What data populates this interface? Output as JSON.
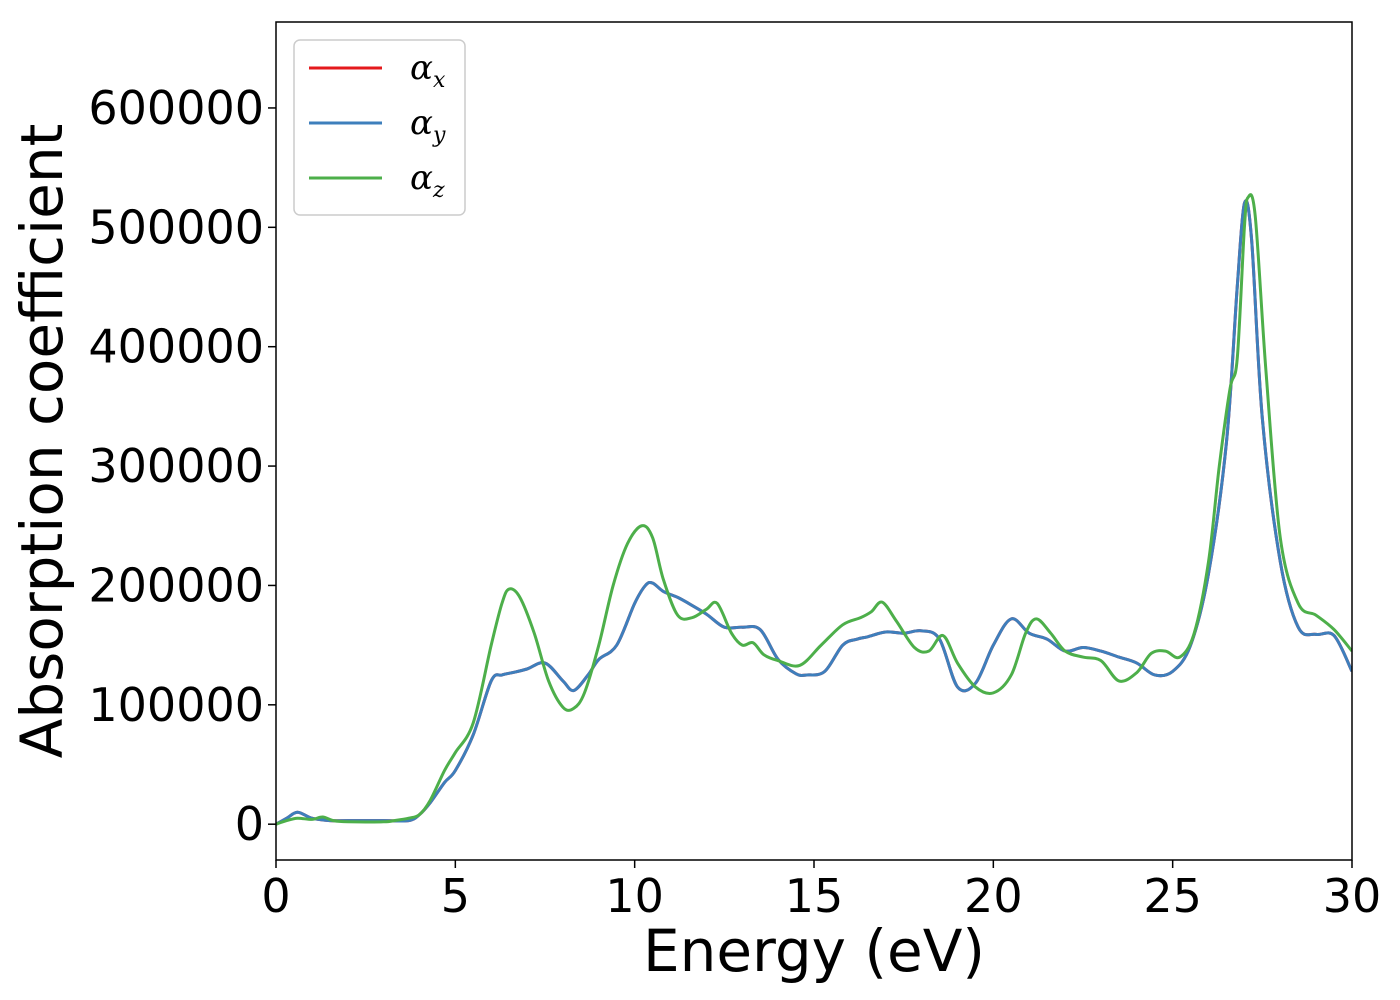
{
  "chart_data": {
    "type": "line",
    "xlabel": "Energy (eV)",
    "ylabel": "Absorption coefficient",
    "xlim": [
      0,
      30
    ],
    "ylim": [
      -30000,
      672000
    ],
    "xticks": [
      0,
      5,
      10,
      15,
      20,
      25,
      30
    ],
    "yticks": [
      0,
      100000,
      200000,
      300000,
      400000,
      500000,
      600000
    ],
    "grid": false,
    "legend_position": "top-left",
    "series": [
      {
        "name": "α_x",
        "symbol": "α",
        "subscript": "x",
        "color": "#e41a1c",
        "x": [
          0,
          0.3,
          0.6,
          1.0,
          1.5,
          2.0,
          3.0,
          3.7,
          4.0,
          4.3,
          4.7,
          5.0,
          5.5,
          6.0,
          6.3,
          6.6,
          7.0,
          7.5,
          8.0,
          8.3,
          8.7,
          9.0,
          9.5,
          10.0,
          10.3,
          10.5,
          10.8,
          11.2,
          11.5,
          12.0,
          12.5,
          13.0,
          13.5,
          14.0,
          14.5,
          14.8,
          15.3,
          15.8,
          16.2,
          16.5,
          17.0,
          17.5,
          18.0,
          18.5,
          19.0,
          19.5,
          20.0,
          20.5,
          21.0,
          21.5,
          22.0,
          22.5,
          23.0,
          23.5,
          24.0,
          24.5,
          25.0,
          25.5,
          26.0,
          26.5,
          26.8,
          27.0,
          27.2,
          27.5,
          28.0,
          28.5,
          29.0,
          29.5,
          30.0
        ],
        "values": [
          0,
          5000,
          10000,
          5000,
          3000,
          3000,
          3000,
          3000,
          8000,
          18000,
          35000,
          45000,
          75000,
          120000,
          125000,
          127000,
          130000,
          135000,
          120000,
          112000,
          125000,
          138000,
          150000,
          185000,
          200000,
          202000,
          195000,
          190000,
          185000,
          176000,
          165000,
          165000,
          163000,
          138000,
          126000,
          125000,
          128000,
          150000,
          155000,
          157000,
          161000,
          160000,
          162000,
          155000,
          115000,
          118000,
          150000,
          172000,
          160000,
          155000,
          145000,
          148000,
          145000,
          140000,
          135000,
          125000,
          128000,
          150000,
          210000,
          320000,
          450000,
          520000,
          490000,
          340000,
          220000,
          165000,
          159000,
          158000,
          128000
        ]
      },
      {
        "name": "α_y",
        "symbol": "α",
        "subscript": "y",
        "color": "#3e7fbc",
        "x": [
          0,
          0.3,
          0.6,
          1.0,
          1.5,
          2.0,
          3.0,
          3.7,
          4.0,
          4.3,
          4.7,
          5.0,
          5.5,
          6.0,
          6.3,
          6.6,
          7.0,
          7.5,
          8.0,
          8.3,
          8.7,
          9.0,
          9.5,
          10.0,
          10.3,
          10.5,
          10.8,
          11.2,
          11.5,
          12.0,
          12.5,
          13.0,
          13.5,
          14.0,
          14.5,
          14.8,
          15.3,
          15.8,
          16.2,
          16.5,
          17.0,
          17.5,
          18.0,
          18.5,
          19.0,
          19.5,
          20.0,
          20.5,
          21.0,
          21.5,
          22.0,
          22.5,
          23.0,
          23.5,
          24.0,
          24.5,
          25.0,
          25.5,
          26.0,
          26.5,
          26.8,
          27.0,
          27.2,
          27.5,
          28.0,
          28.5,
          29.0,
          29.5,
          30.0
        ],
        "values": [
          0,
          5000,
          10000,
          5000,
          3000,
          3000,
          3000,
          3000,
          8000,
          18000,
          35000,
          45000,
          75000,
          120000,
          125000,
          127000,
          130000,
          135000,
          120000,
          112000,
          125000,
          138000,
          150000,
          185000,
          200000,
          202000,
          195000,
          190000,
          185000,
          176000,
          165000,
          165000,
          163000,
          138000,
          126000,
          125000,
          128000,
          150000,
          155000,
          157000,
          161000,
          160000,
          162000,
          155000,
          115000,
          118000,
          150000,
          172000,
          160000,
          155000,
          145000,
          148000,
          145000,
          140000,
          135000,
          125000,
          128000,
          150000,
          210000,
          320000,
          450000,
          520000,
          490000,
          340000,
          220000,
          165000,
          159000,
          158000,
          128000
        ]
      },
      {
        "name": "α_z",
        "symbol": "α",
        "subscript": "z",
        "color": "#4daf4a",
        "x": [
          0,
          0.3,
          0.6,
          1.0,
          1.3,
          1.6,
          2.0,
          3.0,
          3.3,
          3.7,
          4.0,
          4.3,
          4.7,
          5.0,
          5.5,
          6.0,
          6.3,
          6.5,
          6.8,
          7.2,
          7.6,
          8.0,
          8.3,
          8.6,
          9.0,
          9.4,
          9.8,
          10.2,
          10.5,
          10.8,
          11.2,
          11.6,
          12.0,
          12.3,
          12.7,
          13.0,
          13.3,
          13.6,
          14.0,
          14.6,
          15.2,
          15.8,
          16.3,
          16.6,
          16.9,
          17.3,
          17.8,
          18.2,
          18.6,
          19.0,
          19.5,
          20.0,
          20.5,
          20.9,
          21.2,
          21.6,
          22.0,
          22.5,
          23.0,
          23.5,
          24.0,
          24.4,
          24.8,
          25.2,
          25.6,
          26.0,
          26.3,
          26.6,
          26.8,
          27.0,
          27.1,
          27.3,
          27.6,
          28.0,
          28.5,
          29.0,
          29.5,
          30.0
        ],
        "values": [
          0,
          3000,
          5000,
          4000,
          6000,
          3000,
          2000,
          2000,
          3000,
          5000,
          8000,
          20000,
          45000,
          60000,
          85000,
          150000,
          185000,
          197000,
          190000,
          160000,
          120000,
          98000,
          97000,
          110000,
          150000,
          200000,
          235000,
          250000,
          240000,
          205000,
          175000,
          173000,
          180000,
          185000,
          160000,
          150000,
          152000,
          142000,
          137000,
          133000,
          150000,
          167000,
          173000,
          178000,
          186000,
          170000,
          148000,
          145000,
          158000,
          135000,
          115000,
          110000,
          125000,
          160000,
          172000,
          160000,
          145000,
          140000,
          137000,
          120000,
          127000,
          143000,
          145000,
          140000,
          160000,
          220000,
          300000,
          365000,
          390000,
          500000,
          525000,
          510000,
          380000,
          240000,
          185000,
          175000,
          163000,
          145000
        ]
      }
    ]
  }
}
